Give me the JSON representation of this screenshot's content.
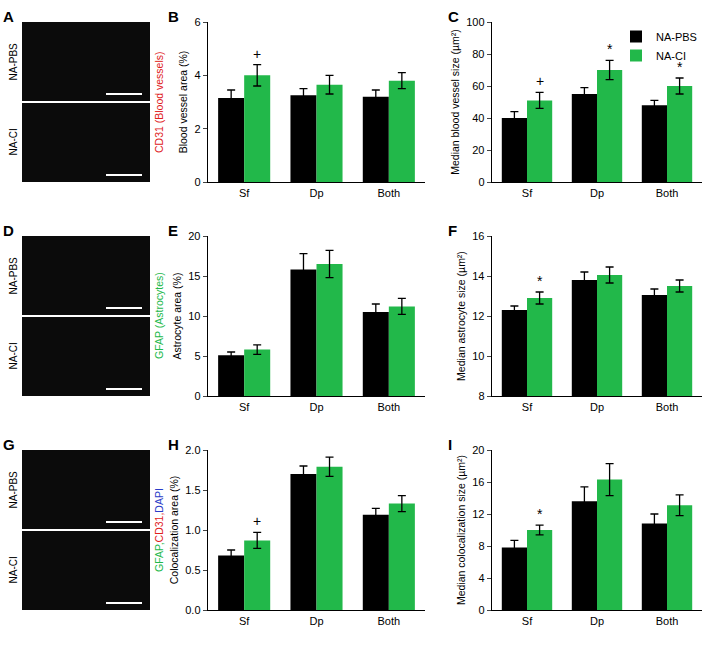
{
  "chart_data": [
    {
      "type": "bar",
      "panel": "B",
      "y_label": "Blood vessel area (%)",
      "categories": [
        "Sf",
        "Dp",
        "Both"
      ],
      "series": [
        {
          "name": "NA-PBS",
          "color": "#000000",
          "values": [
            3.15,
            3.25,
            3.2
          ],
          "errors": [
            0.3,
            0.25,
            0.25
          ]
        },
        {
          "name": "NA-CI",
          "color": "#22b84a",
          "values": [
            4.0,
            3.65,
            3.8
          ],
          "errors": [
            0.4,
            0.35,
            0.3
          ]
        }
      ],
      "ylim": [
        0,
        6
      ],
      "yticks": [
        0,
        2,
        4,
        6
      ],
      "grid": false,
      "annotations": [
        {
          "category": "Sf",
          "series": "NA-CI",
          "text": "+"
        }
      ]
    },
    {
      "type": "bar",
      "panel": "C",
      "y_label": "Median blood vessel size (µm²)",
      "categories": [
        "Sf",
        "Dp",
        "Both"
      ],
      "series": [
        {
          "name": "NA-PBS",
          "color": "#000000",
          "values": [
            40,
            55,
            48
          ],
          "errors": [
            4,
            4,
            3
          ]
        },
        {
          "name": "NA-CI",
          "color": "#22b84a",
          "values": [
            51,
            70,
            60
          ],
          "errors": [
            5,
            6,
            5
          ]
        }
      ],
      "ylim": [
        0,
        100
      ],
      "yticks": [
        0,
        20,
        40,
        60,
        80,
        100
      ],
      "grid": false,
      "legend": "upper right",
      "annotations": [
        {
          "category": "Sf",
          "series": "NA-CI",
          "text": "+"
        },
        {
          "category": "Dp",
          "series": "NA-CI",
          "text": "*"
        },
        {
          "category": "Both",
          "series": "NA-CI",
          "text": "*"
        }
      ]
    },
    {
      "type": "bar",
      "panel": "E",
      "y_label": "Astrocyte area (%)",
      "categories": [
        "Sf",
        "Dp",
        "Both"
      ],
      "series": [
        {
          "name": "NA-PBS",
          "color": "#000000",
          "values": [
            5.1,
            15.8,
            10.5
          ],
          "errors": [
            0.4,
            2.0,
            1.0
          ]
        },
        {
          "name": "NA-CI",
          "color": "#22b84a",
          "values": [
            5.8,
            16.5,
            11.2
          ],
          "errors": [
            0.6,
            1.7,
            1.0
          ]
        }
      ],
      "ylim": [
        0,
        20
      ],
      "yticks": [
        0,
        5,
        10,
        15,
        20
      ],
      "grid": false,
      "annotations": []
    },
    {
      "type": "bar",
      "panel": "F",
      "y_label": "Median astrocyte size (µm²)",
      "categories": [
        "Sf",
        "Dp",
        "Both"
      ],
      "series": [
        {
          "name": "NA-PBS",
          "color": "#000000",
          "values": [
            12.3,
            13.8,
            13.05
          ],
          "errors": [
            0.2,
            0.4,
            0.3
          ]
        },
        {
          "name": "NA-CI",
          "color": "#22b84a",
          "values": [
            12.9,
            14.05,
            13.5
          ],
          "errors": [
            0.3,
            0.4,
            0.3
          ]
        }
      ],
      "ylim": [
        8,
        16
      ],
      "yticks": [
        8,
        10,
        12,
        14,
        16
      ],
      "grid": false,
      "annotations": [
        {
          "category": "Sf",
          "series": "NA-CI",
          "text": "*"
        }
      ]
    },
    {
      "type": "bar",
      "panel": "H",
      "y_label": "Colocalization area (%)",
      "categories": [
        "Sf",
        "Dp",
        "Both"
      ],
      "series": [
        {
          "name": "NA-PBS",
          "color": "#000000",
          "values": [
            0.68,
            1.7,
            1.19
          ],
          "errors": [
            0.07,
            0.1,
            0.08
          ]
        },
        {
          "name": "NA-CI",
          "color": "#22b84a",
          "values": [
            0.87,
            1.79,
            1.33
          ],
          "errors": [
            0.1,
            0.12,
            0.1
          ]
        }
      ],
      "ylim": [
        0,
        2
      ],
      "yticks": [
        {
          "value": 0,
          "label": "0.0"
        },
        0.5,
        {
          "value": 1,
          "label": "1.0"
        },
        1.5,
        {
          "value": 2,
          "label": "2.0"
        }
      ],
      "grid": false,
      "annotations": [
        {
          "category": "Sf",
          "series": "NA-CI",
          "text": "+"
        }
      ]
    },
    {
      "type": "bar",
      "panel": "I",
      "y_label": "Median colocalization size (µm²)",
      "categories": [
        "Sf",
        "Dp",
        "Both"
      ],
      "series": [
        {
          "name": "NA-PBS",
          "color": "#000000",
          "values": [
            7.8,
            13.6,
            10.8
          ],
          "errors": [
            0.9,
            1.8,
            1.2
          ]
        },
        {
          "name": "NA-CI",
          "color": "#22b84a",
          "values": [
            10.0,
            16.3,
            13.1
          ],
          "errors": [
            0.6,
            2.0,
            1.3
          ]
        }
      ],
      "ylim": [
        0,
        20
      ],
      "yticks": [
        0,
        4,
        8,
        12,
        16,
        20
      ],
      "grid": false,
      "annotations": [
        {
          "category": "Sf",
          "series": "NA-CI",
          "text": "*"
        }
      ]
    }
  ],
  "image_panels": [
    {
      "panel": "A",
      "rows": [
        "NA-PBS",
        "NA-CI"
      ],
      "stain": [
        {
          "text": "CD31 (Blood vessels)",
          "color": "#e0201b"
        }
      ]
    },
    {
      "panel": "D",
      "rows": [
        "NA-PBS",
        "NA-CI"
      ],
      "stain": [
        {
          "text": "GFAP (Astrocytes)",
          "color": "#22b84a"
        }
      ]
    },
    {
      "panel": "G",
      "rows": [
        "NA-PBS",
        "NA-CI"
      ],
      "stain": [
        {
          "text": "GFAP,",
          "color": "#22b84a"
        },
        {
          "text": "CD31,",
          "color": "#e0201b"
        },
        {
          "text": "DAPI",
          "color": "#2a3cc8"
        }
      ]
    }
  ]
}
